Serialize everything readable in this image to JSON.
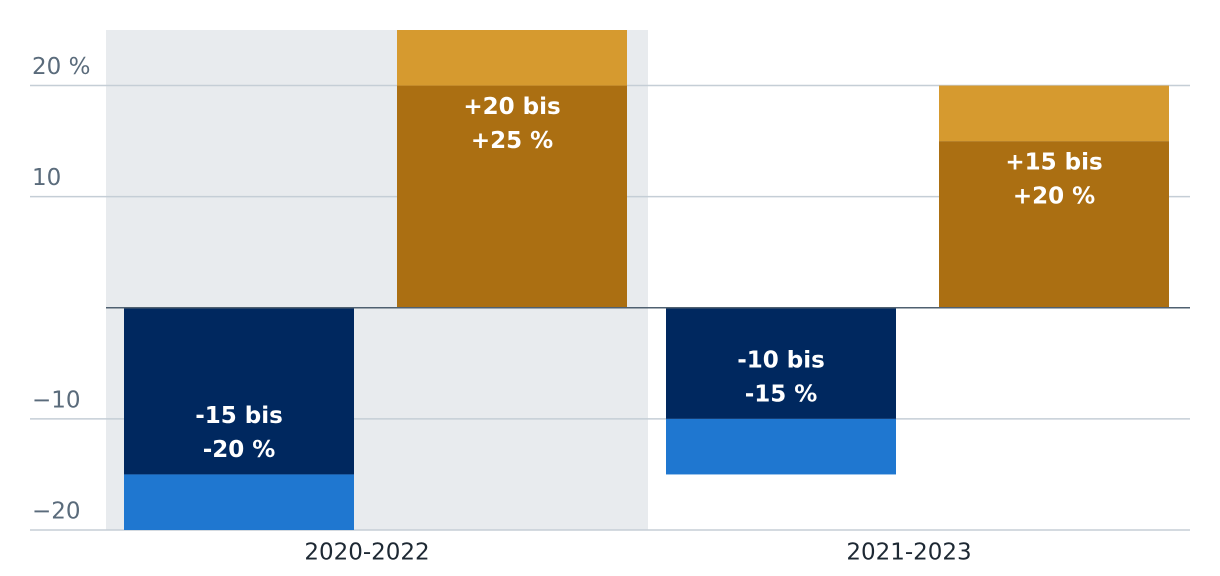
{
  "chart_data": {
    "type": "range-bar",
    "categories": [
      "2020-2022",
      "2021-2023"
    ],
    "highlight_category": 0,
    "ylim": [
      -20,
      25
    ],
    "yticks": [
      {
        "value": 20,
        "label": "20 %"
      },
      10,
      {
        "value": -10,
        "label": "−10"
      },
      {
        "value": -20,
        "label": "−20"
      }
    ],
    "grid": true,
    "series": [
      {
        "color": "#00285f",
        "range_color": "#1f77d0",
        "from": [
          -15,
          -10
        ],
        "to": [
          -20,
          -15
        ],
        "value_labels": [
          [
            "-15 bis",
            "-20 %"
          ],
          [
            "-10 bis",
            "-15 %"
          ]
        ]
      },
      {
        "color": "#ab6f12",
        "range_color": "#d69a2f",
        "from": [
          20,
          15
        ],
        "to": [
          25,
          20
        ],
        "value_labels": [
          [
            "+20 bis",
            "+25 %"
          ],
          [
            "+15 bis",
            "+20 %"
          ]
        ]
      }
    ]
  }
}
